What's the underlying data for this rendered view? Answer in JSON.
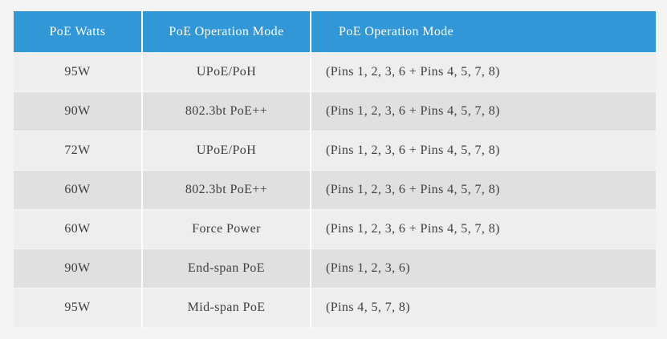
{
  "colors": {
    "page_bg": "#f4f4f4",
    "header_bg": "#3197d7",
    "header_text": "#ffffff",
    "body_text": "#3f3f3f",
    "row_light": "#eeeeee",
    "row_dark": "#e0e0e0",
    "divider": "#ffffff"
  },
  "table": {
    "header": {
      "columns": [
        {
          "label": "PoE Watts"
        },
        {
          "label": "PoE Operation Mode"
        },
        {
          "label": "PoE Operation Mode"
        }
      ]
    },
    "rows": [
      {
        "watts": "95W",
        "mode": "UPoE/PoH",
        "pins": "(Pins 1, 2, 3, 6 + Pins 4, 5, 7, 8)"
      },
      {
        "watts": "90W",
        "mode": "802.3bt PoE++",
        "pins": "(Pins 1, 2, 3, 6 + Pins 4, 5, 7, 8)"
      },
      {
        "watts": "72W",
        "mode": "UPoE/PoH",
        "pins": "(Pins 1, 2, 3, 6 + Pins 4, 5, 7, 8)"
      },
      {
        "watts": "60W",
        "mode": "802.3bt PoE++",
        "pins": "(Pins 1, 2, 3, 6 + Pins 4, 5, 7, 8)"
      },
      {
        "watts": "60W",
        "mode": "Force Power",
        "pins": "(Pins 1, 2, 3, 6 + Pins 4, 5, 7, 8)"
      },
      {
        "watts": "90W",
        "mode": "End-span PoE",
        "pins": "(Pins 1, 2, 3, 6)"
      },
      {
        "watts": "95W",
        "mode": "Mid-span PoE",
        "pins": "(Pins 4, 5, 7, 8)"
      }
    ]
  }
}
